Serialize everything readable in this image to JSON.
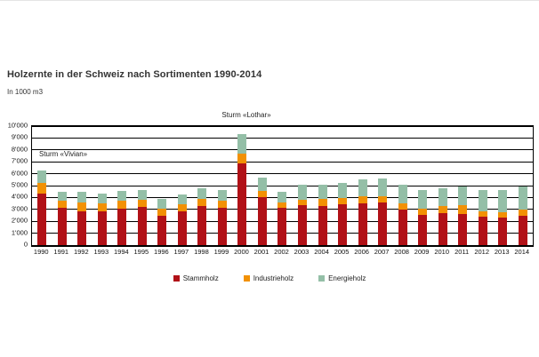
{
  "page": {
    "title": "Holzernte in der Schweiz nach Sortimenten 1990-2014",
    "subtitle": "In 1000 m3"
  },
  "chart_data": {
    "type": "bar",
    "stacked": true,
    "title": "Holzernte in der Schweiz nach Sortimenten 1990-2014",
    "unit_label": "In 1000 m3",
    "xlabel": "",
    "ylabel": "In 1000 m3",
    "categories": [
      1990,
      1991,
      1992,
      1993,
      1994,
      1995,
      1996,
      1997,
      1998,
      1999,
      2000,
      2001,
      2002,
      2003,
      2004,
      2005,
      2006,
      2007,
      2008,
      2009,
      2010,
      2011,
      2012,
      2013,
      2014
    ],
    "series": [
      {
        "name": "Stammholz",
        "color": "#b11117",
        "values": [
          4300,
          3100,
          2850,
          2850,
          3050,
          3200,
          2500,
          2800,
          3250,
          3150,
          6850,
          4000,
          3150,
          3350,
          3300,
          3450,
          3500,
          3550,
          2950,
          2550,
          2700,
          2650,
          2400,
          2300,
          2450
        ]
      },
      {
        "name": "Industrieholz",
        "color": "#f29104",
        "values": [
          950,
          600,
          700,
          650,
          650,
          600,
          550,
          600,
          600,
          600,
          850,
          550,
          450,
          450,
          600,
          500,
          600,
          550,
          550,
          500,
          600,
          700,
          450,
          450,
          550
        ]
      },
      {
        "name": "Energieholz",
        "color": "#94bfa7",
        "values": [
          1050,
          750,
          900,
          800,
          850,
          850,
          850,
          850,
          900,
          900,
          1600,
          1100,
          850,
          1250,
          1200,
          1300,
          1450,
          1500,
          1550,
          1600,
          1500,
          1600,
          1750,
          1900,
          1900
        ]
      }
    ],
    "ylim": [
      0,
      10000
    ],
    "ytick_step": 1000,
    "ytick_labels": [
      "0",
      "1'000",
      "2'000",
      "3'000",
      "4'000",
      "5'000",
      "6'000",
      "7'000",
      "8'000",
      "9'000",
      "10'000"
    ],
    "grid": "horizontal",
    "legend_position": "bottom",
    "annotations": [
      {
        "text": "Sturm «Vivian»",
        "target_year": 1990,
        "placement": "inside-plot-top-left"
      },
      {
        "text": "Sturm «Lothar»",
        "target_year": 2000,
        "placement": "above-plot-over-2000-bar"
      }
    ]
  }
}
